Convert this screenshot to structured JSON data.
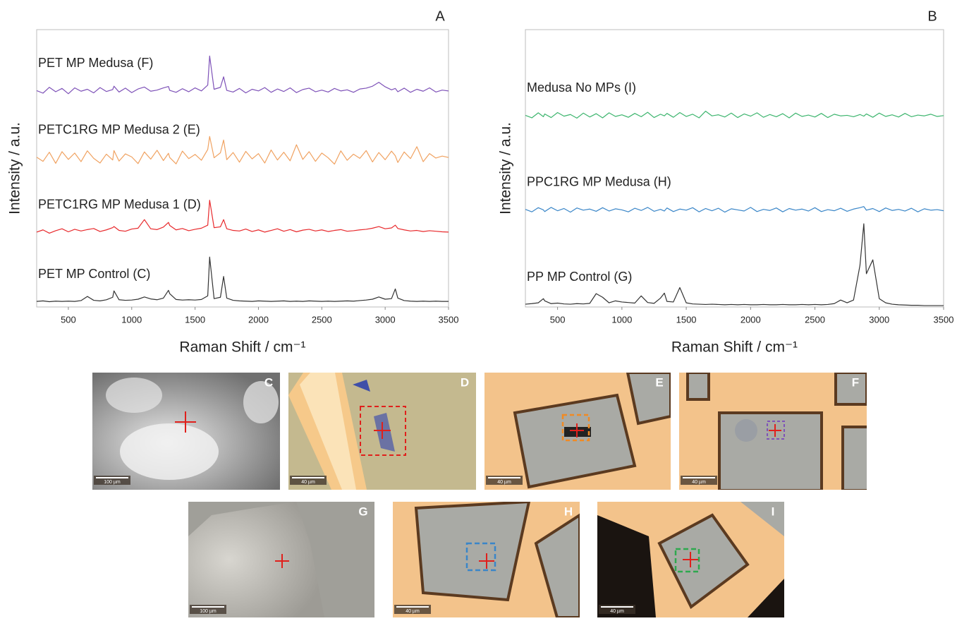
{
  "chart_data": [
    {
      "type": "line",
      "title": "A",
      "xlabel": "Raman Shift / cm⁻¹",
      "ylabel": "Intensity / a.u.",
      "x": [
        250,
        300,
        350,
        400,
        450,
        500,
        550,
        600,
        650,
        700,
        750,
        800,
        850,
        860,
        900,
        950,
        1000,
        1050,
        1100,
        1150,
        1200,
        1250,
        1290,
        1300,
        1350,
        1400,
        1450,
        1500,
        1550,
        1600,
        1615,
        1650,
        1700,
        1725,
        1750,
        1800,
        1850,
        1900,
        1950,
        2000,
        2050,
        2100,
        2150,
        2200,
        2250,
        2300,
        2350,
        2400,
        2450,
        2500,
        2550,
        2600,
        2650,
        2700,
        2750,
        2800,
        2850,
        2900,
        2950,
        3000,
        3050,
        3080,
        3100,
        3150,
        3200,
        3250,
        3300,
        3350,
        3400,
        3450,
        3500
      ],
      "xlim": [
        250,
        3500
      ],
      "xticks": [
        500,
        1000,
        1500,
        2000,
        2500,
        3000,
        3500
      ],
      "ylim": [
        0,
        100
      ],
      "series": [
        {
          "name": "PET MP Medusa (F)",
          "color": "#7e52b8",
          "values": [
            78.0,
            77.1,
            79.2,
            77.6,
            78.8,
            76.9,
            79.0,
            77.8,
            78.5,
            77.2,
            79.1,
            77.7,
            78.4,
            79.6,
            77.5,
            78.9,
            77.3,
            78.6,
            79.3,
            77.8,
            78.2,
            79.0,
            79.5,
            78.1,
            77.4,
            78.7,
            77.6,
            79.0,
            77.9,
            80.0,
            90.5,
            78.5,
            79.2,
            83.0,
            78.1,
            77.5,
            78.8,
            77.2,
            78.5,
            77.9,
            79.1,
            77.4,
            78.6,
            77.7,
            79.0,
            77.3,
            78.4,
            78.9,
            77.6,
            78.2,
            77.5,
            78.8,
            77.9,
            78.3,
            77.4,
            78.6,
            78.9,
            79.6,
            81.0,
            79.4,
            78.3,
            78.8,
            77.6,
            78.9,
            77.4,
            78.5,
            77.8,
            79.0,
            77.5,
            78.2,
            77.9
          ]
        },
        {
          "name": "PETC1RG MP Medusa 2 (E)",
          "color": "#f0a261",
          "values": [
            54.0,
            52.5,
            55.8,
            51.8,
            56.0,
            53.2,
            55.5,
            52.4,
            56.3,
            53.6,
            51.9,
            55.1,
            53.0,
            56.4,
            52.6,
            55.2,
            54.1,
            51.7,
            55.9,
            53.3,
            56.5,
            52.8,
            55.4,
            53.9,
            51.6,
            56.2,
            53.5,
            55.0,
            52.9,
            56.8,
            61.5,
            53.8,
            55.6,
            60.2,
            53.1,
            55.7,
            52.2,
            56.1,
            53.4,
            55.3,
            51.9,
            56.6,
            53.0,
            55.8,
            52.7,
            58.5,
            53.2,
            56.0,
            52.5,
            55.5,
            53.8,
            51.5,
            56.3,
            52.9,
            55.1,
            53.6,
            56.4,
            52.3,
            55.7,
            53.1,
            56.2,
            54.5,
            52.1,
            55.9,
            53.5,
            57.8,
            52.4,
            55.3,
            53.7,
            54.4,
            53.9
          ]
        },
        {
          "name": "PETC1RG MP Medusa 1 (D)",
          "color": "#e8292c",
          "values": [
            27.0,
            27.8,
            26.6,
            27.5,
            28.2,
            27.1,
            28.0,
            27.4,
            27.9,
            28.3,
            27.2,
            27.8,
            28.6,
            29.0,
            27.6,
            27.3,
            28.1,
            28.4,
            31.5,
            28.2,
            27.9,
            28.8,
            30.5,
            29.4,
            27.8,
            28.3,
            27.5,
            28.0,
            28.4,
            29.5,
            38.5,
            28.6,
            28.9,
            31.5,
            28.2,
            27.6,
            27.4,
            28.1,
            27.2,
            27.8,
            27.0,
            27.6,
            28.2,
            27.3,
            27.9,
            27.1,
            27.7,
            28.0,
            27.4,
            27.8,
            27.2,
            27.6,
            27.9,
            27.3,
            27.5,
            27.8,
            28.0,
            28.4,
            29.0,
            28.2,
            28.5,
            29.5,
            28.3,
            27.8,
            27.4,
            27.6,
            27.2,
            27.5,
            27.3,
            27.1,
            27.0
          ]
        },
        {
          "name": "PET MP Control (C)",
          "color": "#333333",
          "values": [
            2.0,
            2.2,
            1.9,
            2.1,
            2.0,
            2.1,
            2.0,
            2.3,
            3.8,
            2.4,
            2.2,
            2.6,
            3.5,
            5.8,
            2.6,
            2.4,
            2.5,
            2.8,
            3.6,
            2.9,
            2.6,
            3.2,
            6.0,
            4.8,
            2.7,
            2.5,
            2.6,
            2.5,
            2.7,
            4.0,
            18.0,
            3.0,
            3.5,
            11.0,
            3.2,
            2.4,
            2.2,
            2.1,
            2.0,
            2.2,
            2.1,
            2.0,
            2.1,
            2.2,
            2.0,
            2.1,
            2.0,
            2.2,
            2.1,
            2.0,
            2.1,
            2.0,
            2.1,
            2.2,
            2.1,
            2.3,
            2.5,
            2.8,
            3.6,
            2.8,
            3.0,
            6.5,
            3.2,
            2.3,
            2.1,
            2.0,
            2.1,
            2.0,
            2.1,
            2.0,
            2.0
          ]
        }
      ]
    },
    {
      "type": "line",
      "title": "B",
      "xlabel": "Raman Shift / cm⁻¹",
      "ylabel": "Intensity / a.u.",
      "x": [
        250,
        300,
        350,
        390,
        400,
        450,
        500,
        550,
        600,
        650,
        700,
        750,
        800,
        850,
        900,
        950,
        1000,
        1050,
        1100,
        1150,
        1200,
        1250,
        1300,
        1330,
        1350,
        1400,
        1450,
        1500,
        1550,
        1600,
        1650,
        1700,
        1750,
        1800,
        1850,
        1900,
        1950,
        2000,
        2050,
        2100,
        2150,
        2200,
        2250,
        2300,
        2350,
        2400,
        2450,
        2500,
        2550,
        2600,
        2650,
        2700,
        2750,
        2800,
        2850,
        2880,
        2900,
        2950,
        3000,
        3050,
        3100,
        3150,
        3200,
        3250,
        3300,
        3350,
        3400,
        3450,
        3500
      ],
      "xlim": [
        250,
        3500
      ],
      "xticks": [
        500,
        1000,
        1500,
        2000,
        2500,
        3000,
        3500
      ],
      "ylim": [
        0,
        100
      ],
      "series": [
        {
          "name": "Medusa No MPs (I)",
          "color": "#3db56e",
          "values": [
            69.1,
            68.2,
            70.0,
            68.6,
            69.6,
            68.3,
            70.1,
            68.8,
            69.4,
            68.1,
            69.9,
            68.5,
            69.7,
            68.2,
            70.0,
            68.7,
            69.3,
            68.4,
            69.8,
            68.6,
            70.2,
            68.3,
            69.5,
            68.9,
            69.8,
            68.4,
            70.1,
            68.7,
            69.5,
            68.2,
            70.6,
            68.9,
            69.3,
            68.5,
            69.9,
            68.3,
            69.6,
            68.8,
            70.0,
            68.4,
            69.4,
            68.6,
            69.7,
            68.2,
            69.9,
            68.7,
            69.2,
            68.5,
            69.8,
            68.3,
            69.5,
            68.9,
            69.1,
            68.6,
            69.4,
            68.8,
            69.6,
            68.4,
            69.9,
            68.7,
            69.3,
            68.5,
            69.8,
            68.6,
            69.2,
            68.9,
            69.5,
            68.7,
            69.0
          ]
        },
        {
          "name": "PPC1RG MP Medusa (H)",
          "color": "#3a86c8",
          "values": [
            35.2,
            34.3,
            35.8,
            35.0,
            34.4,
            35.9,
            34.7,
            35.5,
            34.2,
            35.7,
            34.9,
            35.3,
            34.5,
            35.8,
            34.6,
            35.4,
            35.0,
            34.3,
            35.6,
            34.8,
            35.9,
            34.5,
            35.2,
            34.6,
            35.7,
            34.4,
            35.3,
            34.9,
            35.8,
            34.3,
            35.5,
            34.7,
            35.6,
            34.2,
            35.4,
            35.0,
            34.6,
            35.9,
            34.4,
            35.2,
            34.8,
            35.7,
            34.3,
            35.5,
            34.9,
            35.3,
            34.6,
            35.8,
            34.4,
            35.1,
            34.7,
            35.6,
            34.5,
            35.3,
            35.8,
            36.2,
            34.9,
            35.5,
            34.4,
            35.7,
            34.8,
            35.2,
            34.6,
            35.6,
            34.3,
            35.4,
            34.9,
            35.1,
            34.7
          ]
        },
        {
          "name": "PP MP Control (G)",
          "color": "#333333",
          "values": [
            1.0,
            1.2,
            1.5,
            3.0,
            2.2,
            1.2,
            1.4,
            1.1,
            1.0,
            1.2,
            1.1,
            1.3,
            4.8,
            3.5,
            1.5,
            2.2,
            1.8,
            1.6,
            1.4,
            4.0,
            1.6,
            1.3,
            3.2,
            5.0,
            2.0,
            1.8,
            7.0,
            1.5,
            1.1,
            1.0,
            0.9,
            1.0,
            0.9,
            0.8,
            0.9,
            0.8,
            0.9,
            0.8,
            0.8,
            0.9,
            0.8,
            0.8,
            0.9,
            0.8,
            0.8,
            0.9,
            0.8,
            0.9,
            0.8,
            0.9,
            1.2,
            2.5,
            1.5,
            2.5,
            15.0,
            30.0,
            12.0,
            17.0,
            3.0,
            1.5,
            1.0,
            0.8,
            0.7,
            0.6,
            0.6,
            0.5,
            0.5,
            0.5,
            0.5
          ]
        }
      ]
    }
  ],
  "micrographs": [
    {
      "label": "C",
      "scale_bar": "100 µm"
    },
    {
      "label": "D",
      "scale_bar": "40 µm"
    },
    {
      "label": "E",
      "scale_bar": "40 µm"
    },
    {
      "label": "F",
      "scale_bar": "40 µm"
    },
    {
      "label": "G",
      "scale_bar": "100 µm"
    },
    {
      "label": "H",
      "scale_bar": "40 µm"
    },
    {
      "label": "I",
      "scale_bar": "40 µm"
    }
  ]
}
